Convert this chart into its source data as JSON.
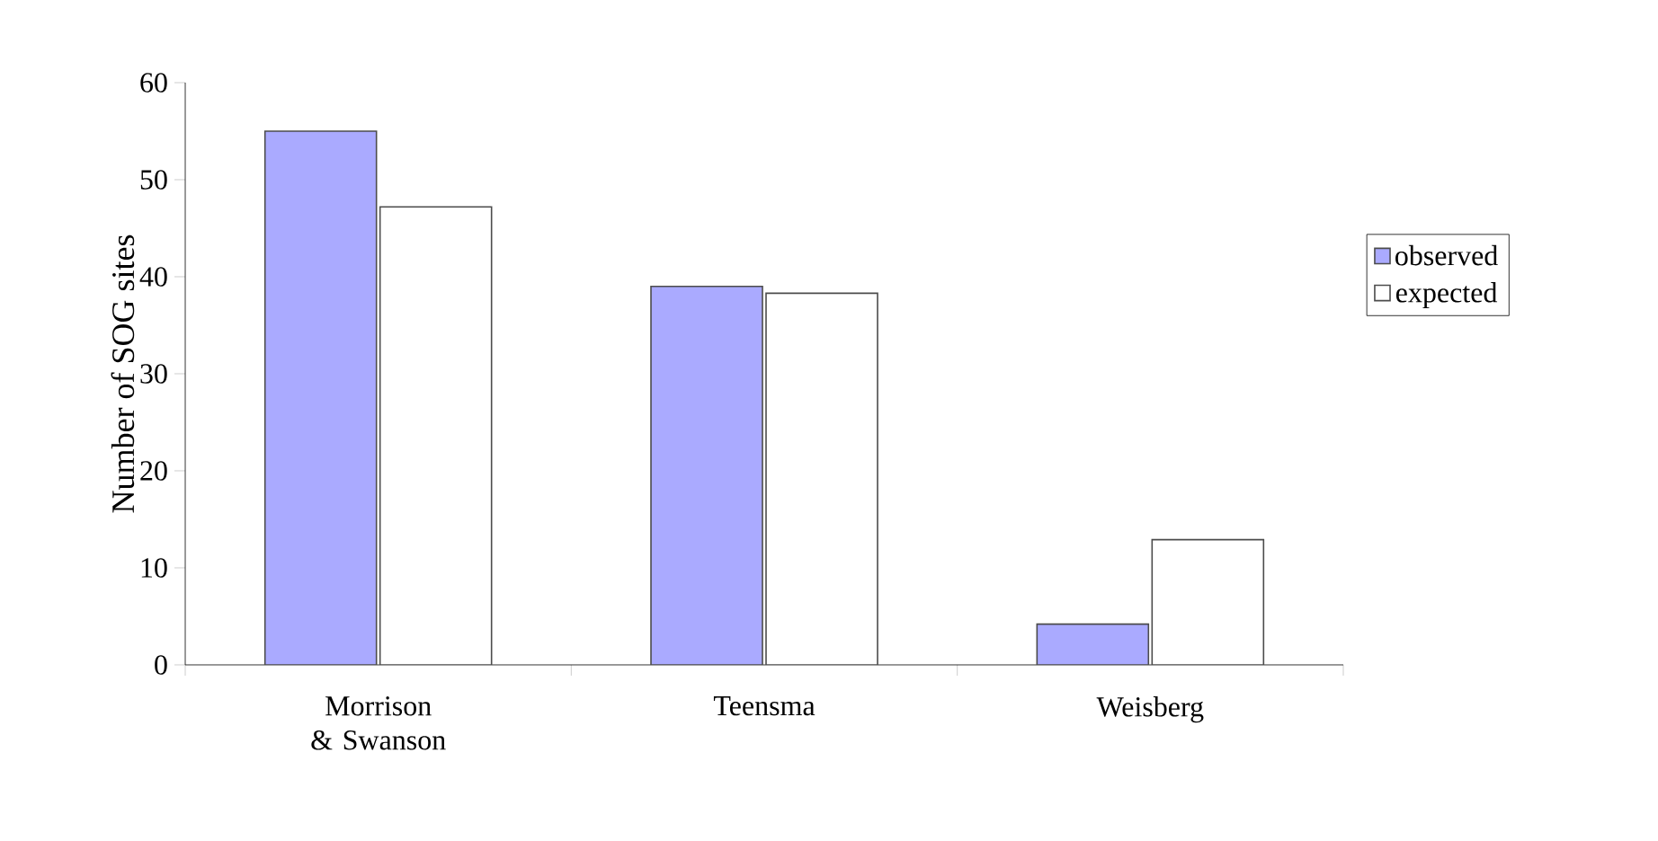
{
  "chart_data": {
    "type": "bar",
    "ylabel": "Number of SOG sites",
    "categories": [
      "Morrison & Swanson",
      "Teensma",
      "Weisberg"
    ],
    "series": [
      {
        "name": "observed",
        "color": "#aaaaff",
        "values": [
          55,
          39,
          4.2
        ]
      },
      {
        "name": "expected",
        "color": "#ffffff",
        "values": [
          47.2,
          38.3,
          12.9
        ]
      }
    ],
    "ylim": [
      0,
      60
    ],
    "yticks": [
      0,
      10,
      20,
      30,
      40,
      50,
      60
    ],
    "grid": false,
    "legend": "right"
  }
}
